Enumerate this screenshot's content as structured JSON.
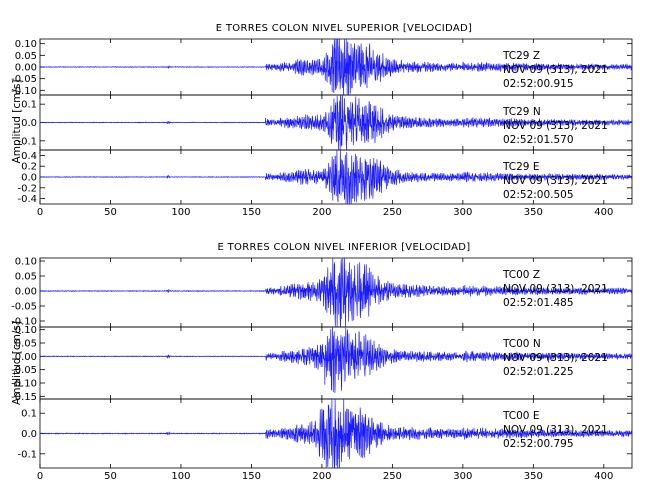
{
  "chart_data": [
    {
      "type": "line",
      "title": "E TORRES COLON NIVEL SUPERIOR [VELOCIDAD]",
      "ylabel": "Amplitud [cm/s]",
      "xlim": [
        0,
        420
      ],
      "x_ticks": [
        "0",
        "50",
        "100",
        "150",
        "200",
        "250",
        "300",
        "350",
        "400"
      ],
      "line_color": "#1a1aff",
      "series": [
        {
          "name": "TC29 Z",
          "station": "TC29",
          "component": "Z",
          "date": "NOV 09 (313), 2021",
          "start_time": "02:52:00.915",
          "ylim": [
            -0.12,
            0.12
          ],
          "y_ticks": [
            "0.10",
            "0.05",
            "0.00",
            "-0.05",
            "-0.10"
          ],
          "peak_amplitude": 0.12,
          "peak_time": 212
        },
        {
          "name": "TC29 N",
          "station": "TC29",
          "component": "N",
          "date": "NOV 09 (313), 2021",
          "start_time": "02:52:01.570",
          "ylim": [
            -0.15,
            0.15
          ],
          "y_ticks": [
            "0.1",
            "0.0",
            "-0.1"
          ],
          "peak_amplitude": 0.15,
          "peak_time": 213
        },
        {
          "name": "TC29 E",
          "station": "TC29",
          "component": "E",
          "date": "NOV 09 (313), 2021",
          "start_time": "02:52:00.505",
          "ylim": [
            -0.5,
            0.5
          ],
          "y_ticks": [
            "0.4",
            "0.2",
            "0.0",
            "-0.2",
            "-0.4"
          ],
          "peak_amplitude": 0.5,
          "peak_time": 213
        }
      ]
    },
    {
      "type": "line",
      "title": "E TORRES COLON NIVEL INFERIOR [VELOCIDAD]",
      "ylabel": "Amplitud [cm/s]",
      "xlim": [
        0,
        420
      ],
      "x_ticks": [
        "0",
        "50",
        "100",
        "150",
        "200",
        "250",
        "300",
        "350",
        "400"
      ],
      "line_color": "#1a1aff",
      "series": [
        {
          "name": "TC00 Z",
          "station": "TC00",
          "component": "Z",
          "date": "NOV 09 (313), 2021",
          "start_time": "02:52:01.485",
          "ylim": [
            -0.12,
            0.11
          ],
          "y_ticks": [
            "0.10",
            "0.05",
            "0.00",
            "-0.05",
            "-0.10"
          ],
          "peak_amplitude": 0.11,
          "peak_time": 210
        },
        {
          "name": "TC00 N",
          "station": "TC00",
          "component": "N",
          "date": "NOV 09 (313), 2021",
          "start_time": "02:52:01.225",
          "ylim": [
            -0.16,
            0.11
          ],
          "y_ticks": [
            "0.10",
            "0.05",
            "0.00",
            "-0.05",
            "-0.10",
            "-0.15"
          ],
          "peak_amplitude": 0.13,
          "peak_time": 207
        },
        {
          "name": "TC00 E",
          "station": "TC00",
          "component": "E",
          "date": "NOV 09 (313), 2021",
          "start_time": "02:52:00.795",
          "ylim": [
            -0.17,
            0.17
          ],
          "y_ticks": [
            "0.1",
            "0.0",
            "-0.1"
          ],
          "peak_amplitude": 0.17,
          "peak_time": 206
        }
      ]
    }
  ]
}
